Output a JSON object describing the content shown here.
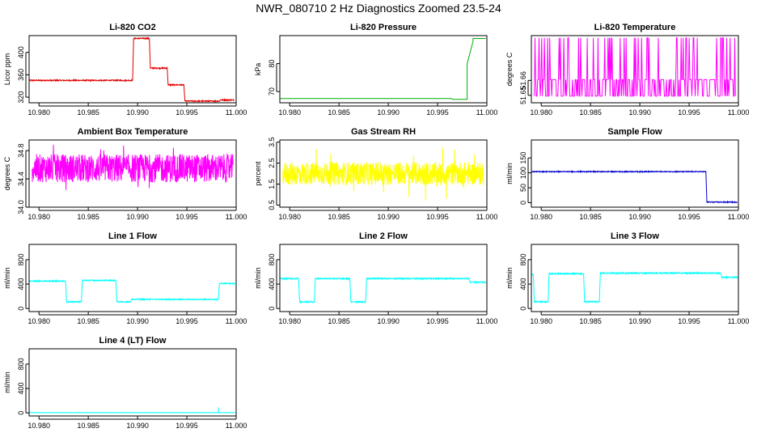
{
  "title": "NWR_080710  2 Hz Diagnostics Zoomed 23.5-24",
  "colors": {
    "co2": "#e00000",
    "pressure": "#00b000",
    "magenta": "#ff00ff",
    "yellow": "#ffff00",
    "blue": "#0000cc",
    "cyan": "#00ffff"
  },
  "chart_data": [
    {
      "type": "line",
      "title": "Li-820 CO2",
      "ylabel": "Licor ppm",
      "color": "co2",
      "xlim": [
        10.979,
        11.0
      ],
      "ylim": [
        310,
        430
      ],
      "xticks": [
        "10.980",
        "10.985",
        "10.990",
        "10.995",
        "11.000"
      ],
      "yticks": [
        320,
        360,
        400
      ],
      "noise": 1,
      "segments": [
        {
          "x0": 10.979,
          "x1": 10.9895,
          "y": 350
        },
        {
          "x0": 10.9896,
          "x1": 10.9912,
          "y": 425
        },
        {
          "x0": 10.9913,
          "x1": 10.993,
          "y": 372
        },
        {
          "x0": 10.9931,
          "x1": 10.9947,
          "y": 342
        },
        {
          "x0": 10.9948,
          "x1": 10.9983,
          "y": 313
        },
        {
          "x0": 10.9984,
          "x1": 10.9998,
          "y": 315
        }
      ]
    },
    {
      "type": "line",
      "title": "Li-820 Pressure",
      "ylabel": "kPa",
      "color": "pressure",
      "xlim": [
        10.979,
        11.0
      ],
      "ylim": [
        66,
        90
      ],
      "xticks": [
        "10.980",
        "10.985",
        "10.990",
        "10.995",
        "11.000"
      ],
      "yticks": [
        70,
        80
      ],
      "noise": 0,
      "segments": [
        {
          "x0": 10.979,
          "x1": 10.9964,
          "y": 67.5
        },
        {
          "x0": 10.9965,
          "x1": 10.998,
          "y": 67.2
        },
        {
          "x0": 10.998,
          "x1": 10.9986,
          "y": 80,
          "ramp_to": 88
        },
        {
          "x0": 10.9986,
          "x1": 10.9999,
          "y": 89
        }
      ]
    },
    {
      "type": "line",
      "title": "Li-820 Temperature",
      "ylabel": "degrees C",
      "color": "magenta",
      "xlim": [
        10.979,
        11.0
      ],
      "ylim": [
        51.645,
        51.69
      ],
      "xticks": [
        "10.980",
        "10.985",
        "10.990",
        "10.995",
        "11.000"
      ],
      "yticks": [
        "51.65",
        "51.66"
      ],
      "style": "binary",
      "levels": [
        51.6495,
        51.6605,
        51.6885
      ],
      "segments": []
    },
    {
      "type": "line",
      "title": "Ambient Box Temperature",
      "ylabel": "degrees C",
      "color": "magenta",
      "xlim": [
        10.979,
        11.0
      ],
      "ylim": [
        34.0,
        34.95
      ],
      "xticks": [
        "10.980",
        "10.985",
        "10.990",
        "10.995",
        "11.000"
      ],
      "yticks": [
        "34.0",
        "34.4",
        "34.8"
      ],
      "style": "noise",
      "center": 34.55,
      "amp": 0.2,
      "spike": 0.35,
      "segments": []
    },
    {
      "type": "line",
      "title": "Gas Stream RH",
      "ylabel": "percent",
      "color": "yellow",
      "xlim": [
        10.979,
        11.0
      ],
      "ylim": [
        0.4,
        3.6
      ],
      "xticks": [
        "10.980",
        "10.985",
        "10.990",
        "10.995",
        "11.000"
      ],
      "yticks": [
        "0.5",
        "1.5",
        "2.5",
        "3.5"
      ],
      "style": "noise",
      "center": 2.0,
      "amp": 0.55,
      "spike": 1.3,
      "segments": []
    },
    {
      "type": "line",
      "title": "Sample Flow",
      "ylabel": "ml/min",
      "color": "blue",
      "xlim": [
        10.979,
        11.0
      ],
      "ylim": [
        -15,
        210
      ],
      "xticks": [
        "10.980",
        "10.985",
        "10.990",
        "10.995",
        "11.000"
      ],
      "yticks": [
        0,
        50,
        100,
        150
      ],
      "noise": 1.5,
      "segments": [
        {
          "x0": 10.979,
          "x1": 10.9967,
          "y": 104
        },
        {
          "x0": 10.9968,
          "x1": 10.9999,
          "y": 2
        }
      ]
    },
    {
      "type": "line",
      "title": "Line 1 Flow",
      "ylabel": "ml/min",
      "color": "cyan",
      "xlim": [
        10.979,
        11.0
      ],
      "ylim": [
        -50,
        1050
      ],
      "xticks": [
        "10.980",
        "10.985",
        "10.990",
        "10.995",
        "11.000"
      ],
      "yticks": [
        0,
        400,
        800
      ],
      "noise": 8,
      "segments": [
        {
          "x0": 10.979,
          "x1": 10.9827,
          "y": 450
        },
        {
          "x0": 10.9828,
          "x1": 10.9843,
          "y": 110
        },
        {
          "x0": 10.9844,
          "x1": 10.9878,
          "y": 460
        },
        {
          "x0": 10.9879,
          "x1": 10.9893,
          "y": 110
        },
        {
          "x0": 10.9894,
          "x1": 10.9982,
          "y": 150
        },
        {
          "x0": 10.9983,
          "x1": 10.9999,
          "y": 410
        }
      ]
    },
    {
      "type": "line",
      "title": "Line 2 Flow",
      "ylabel": "ml/min",
      "color": "cyan",
      "xlim": [
        10.979,
        11.0
      ],
      "ylim": [
        -50,
        1050
      ],
      "xticks": [
        "10.980",
        "10.985",
        "10.990",
        "10.995",
        "11.000"
      ],
      "yticks": [
        0,
        400,
        800
      ],
      "noise": 10,
      "segments": [
        {
          "x0": 10.979,
          "x1": 10.9809,
          "y": 490
        },
        {
          "x0": 10.981,
          "x1": 10.9825,
          "y": 110
        },
        {
          "x0": 10.9826,
          "x1": 10.9861,
          "y": 490
        },
        {
          "x0": 10.9862,
          "x1": 10.9877,
          "y": 110
        },
        {
          "x0": 10.9878,
          "x1": 10.9982,
          "y": 490
        },
        {
          "x0": 10.9983,
          "x1": 10.9999,
          "y": 430
        }
      ]
    },
    {
      "type": "line",
      "title": "Line 3 Flow",
      "ylabel": "ml/min",
      "color": "cyan",
      "xlim": [
        10.979,
        11.0
      ],
      "ylim": [
        -50,
        1050
      ],
      "xticks": [
        "10.980",
        "10.985",
        "10.990",
        "10.995",
        "11.000"
      ],
      "yticks": [
        0,
        400,
        800
      ],
      "noise": 10,
      "segments": [
        {
          "x0": 10.979,
          "x1": 10.9792,
          "y": 560
        },
        {
          "x0": 10.9793,
          "x1": 10.9807,
          "y": 110
        },
        {
          "x0": 10.9808,
          "x1": 10.9843,
          "y": 570
        },
        {
          "x0": 10.9844,
          "x1": 10.9859,
          "y": 110
        },
        {
          "x0": 10.986,
          "x1": 10.9982,
          "y": 580
        },
        {
          "x0": 10.9983,
          "x1": 10.9999,
          "y": 510
        }
      ]
    },
    {
      "type": "line",
      "title": "Line 4 (LT) Flow",
      "ylabel": "ml/min",
      "color": "cyan",
      "xlim": [
        10.979,
        11.0
      ],
      "ylim": [
        -50,
        1050
      ],
      "xticks": [
        "10.980",
        "10.985",
        "10.990",
        "10.995",
        "11.000"
      ],
      "yticks": [
        0,
        400,
        800
      ],
      "noise": 2,
      "spikes": [
        {
          "x": 10.9982,
          "y": 90
        }
      ],
      "segments": [
        {
          "x0": 10.979,
          "x1": 10.9999,
          "y": 5
        }
      ]
    }
  ]
}
